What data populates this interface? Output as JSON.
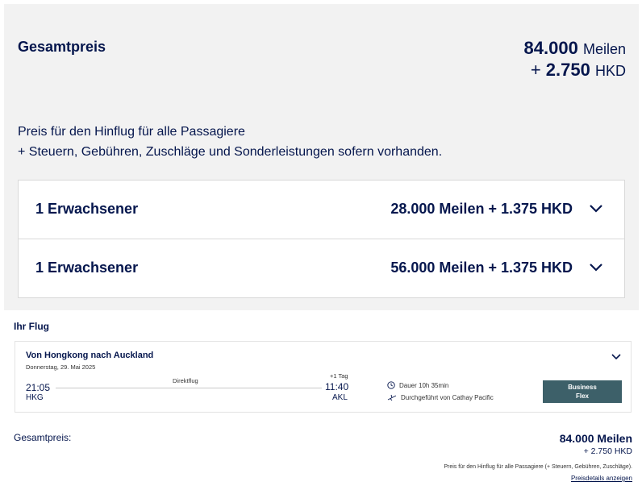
{
  "summary": {
    "title": "Gesamtpreis",
    "miles_value": "84.000",
    "miles_unit": "Meilen",
    "tax_prefix": "+",
    "tax_value": "2.750",
    "tax_unit": "HKD",
    "desc_line1": "Preis für den Hinflug für alle Passagiere",
    "desc_line2": "+ Steuern, Gebühren, Zuschläge und Sonderleistungen sofern vorhanden."
  },
  "passengers": [
    {
      "label": "1 Erwachsener",
      "price": "28.000 Meilen + 1.375 HKD",
      "icon": "chevron-down-icon"
    },
    {
      "label": "1 Erwachsener",
      "price": "56.000 Meilen + 1.375 HKD",
      "icon": "chevron-down-icon"
    }
  ],
  "flight": {
    "heading": "Ihr Flug",
    "route": "Von Hongkong nach Auckland",
    "date": "Donnerstag, 29. Mai 2025",
    "dep_time": "21:05",
    "dep_code": "HKG",
    "arr_time": "11:40",
    "arr_code": "AKL",
    "next_day": "+1 Tag",
    "stop_type": "Direktflug",
    "duration": "Dauer 10h 35min",
    "operator": "Durchgeführt von Cathay Pacific",
    "fare_line1": "Business",
    "fare_line2": "Flex",
    "fare_color": "#3d6069"
  },
  "total": {
    "label": "Gesamtpreis:",
    "main": "84.000 Meilen",
    "sub": "+ 2.750 HKD",
    "note": "Preis für den Hinflug für alle Passagiere (+ Steuern, Gebühren, Zuschläge).",
    "link": "Preisdetails anzeigen"
  },
  "colors": {
    "brand": "#05164d",
    "panel": "#f2f2f2"
  }
}
